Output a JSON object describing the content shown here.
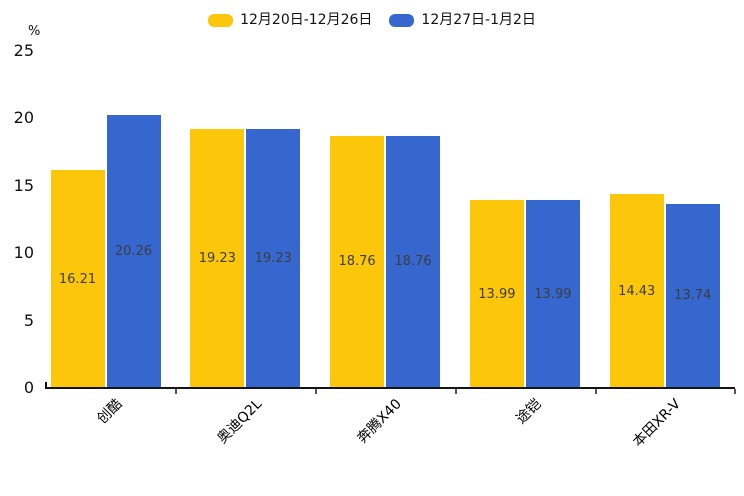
{
  "chart_data": {
    "type": "bar",
    "title": "",
    "xlabel": "",
    "ylabel": "%",
    "categories": [
      "创酷",
      "奥迪Q2L",
      "奔腾X40",
      "途铠",
      "本田XR-V"
    ],
    "series": [
      {
        "name": "12月20日-12月26日",
        "color": "#FCC60A",
        "values": [
          16.21,
          19.23,
          18.76,
          13.99,
          14.43
        ]
      },
      {
        "name": "12月27日-1月2日",
        "color": "#3667CE",
        "values": [
          20.26,
          19.23,
          18.76,
          13.99,
          13.74
        ]
      }
    ],
    "yticks": [
      0,
      5,
      10,
      15,
      20,
      25
    ],
    "ylim": [
      0,
      25
    ],
    "grid": false,
    "legend_position": "top",
    "value_labels": true,
    "value_label_color": "#3d3d3d",
    "axis_line_color": "#141414"
  }
}
